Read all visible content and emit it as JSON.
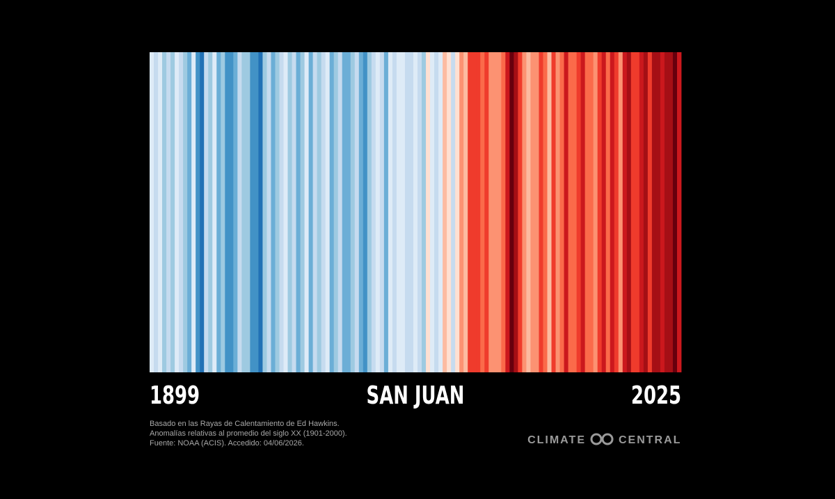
{
  "chart_data": {
    "type": "stripes",
    "title": "SAN JUAN",
    "xlim": [
      1899,
      2025
    ],
    "values": [
      -0.1,
      -0.3,
      -0.1,
      -0.5,
      -0.3,
      -0.5,
      -0.1,
      -0.3,
      -0.5,
      -0.7,
      -0.1,
      -0.9,
      -1.1,
      -0.3,
      -0.5,
      -0.1,
      -0.7,
      -0.5,
      -0.9,
      -0.9,
      -0.7,
      -0.3,
      -0.5,
      -0.5,
      -0.9,
      -0.9,
      -1.1,
      -0.5,
      -0.3,
      -0.7,
      -0.5,
      -0.3,
      -0.1,
      -0.5,
      -0.3,
      -0.7,
      -0.5,
      -0.1,
      -0.7,
      -0.3,
      -0.5,
      -0.3,
      -0.1,
      -0.7,
      -0.5,
      -0.3,
      -0.7,
      -0.7,
      -0.5,
      -0.3,
      -0.7,
      -0.9,
      -0.5,
      -0.3,
      -0.1,
      -0.3,
      -0.7,
      -0.1,
      -0.3,
      -0.1,
      -0.1,
      -0.3,
      -0.3,
      -0.1,
      -0.3,
      -0.5,
      0.1,
      -0.1,
      -0.3,
      -0.1,
      0.3,
      0.1,
      -0.3,
      0.1,
      0.5,
      0.3,
      0.9,
      0.9,
      0.9,
      0.7,
      0.9,
      0.5,
      0.5,
      0.5,
      0.7,
      1.1,
      1.5,
      1.3,
      0.9,
      0.5,
      0.3,
      0.5,
      0.5,
      0.9,
      0.7,
      0.3,
      0.9,
      0.5,
      0.7,
      1.1,
      0.7,
      0.7,
      0.9,
      1.1,
      0.7,
      0.7,
      0.5,
      0.9,
      1.1,
      0.7,
      1.1,
      0.9,
      0.5,
      1.1,
      1.3,
      0.9,
      0.9,
      1.1,
      1.3,
      0.9,
      1.3,
      1.3,
      1.1,
      1.3,
      1.3,
      1.5,
      1.1
    ],
    "vlim": [
      -1.6,
      1.6
    ],
    "colors": [
      "#08306b",
      "#08519c",
      "#2171b5",
      "#4292c6",
      "#6baed6",
      "#9ecae1",
      "#c6dbef",
      "#deebf7",
      "#fee0d2",
      "#fcbba1",
      "#fc9272",
      "#fb6a4a",
      "#ef3b2c",
      "#cb181d",
      "#a50f15",
      "#67000d"
    ],
    "notes": [
      "Basado en las Rayas de Calentamiento de Ed Hawkins.",
      "Anomalías relativas al promedio del siglo XX (1901-2000).",
      "Fuente: NOAA (ACIS). Accedido: 04/06/2026."
    ],
    "logo": [
      "CLIMATE",
      "CENTRAL"
    ]
  }
}
